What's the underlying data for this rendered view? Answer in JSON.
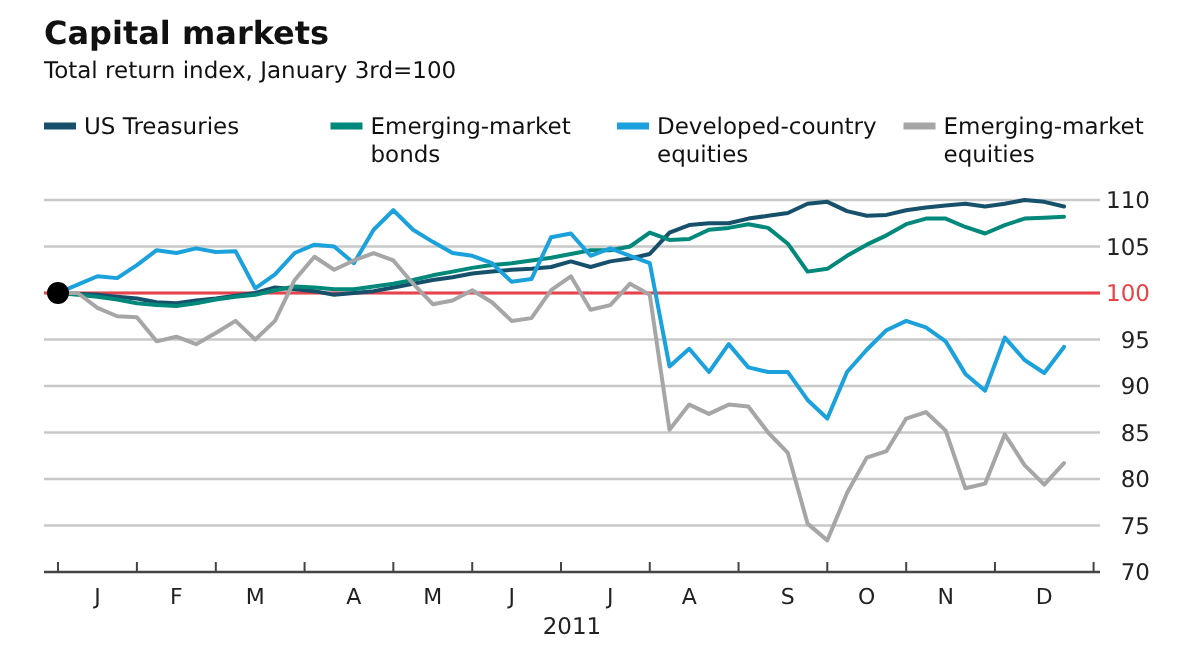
{
  "chart_data": {
    "type": "line",
    "title": "Capital markets",
    "subtitle": "Total return index, January 3rd=100",
    "xlabel": "2011",
    "categories": [
      null,
      null,
      "J",
      null,
      null,
      null,
      "F",
      null,
      null,
      null,
      "M",
      null,
      null,
      null,
      null,
      "A",
      null,
      null,
      null,
      "M",
      null,
      null,
      null,
      "J",
      null,
      null,
      null,
      null,
      "J",
      null,
      null,
      null,
      "A",
      null,
      null,
      null,
      null,
      "S",
      null,
      null,
      null,
      "O",
      null,
      null,
      null,
      "N",
      null,
      null,
      null,
      null,
      "D",
      null
    ],
    "ylim": [
      70,
      110
    ],
    "yticks": [
      70,
      75,
      80,
      85,
      90,
      95,
      100,
      105,
      110
    ],
    "grid": "y",
    "legend": "top",
    "ref_lines": [
      {
        "axis": "y",
        "value": 100,
        "color": "#e8424a"
      }
    ],
    "series": [
      {
        "name": "US Treasuries",
        "color": "#17506b",
        "values": [
          100,
          99.9,
          99.8,
          99.6,
          99.4,
          99,
          98.9,
          99.2,
          99.4,
          99.7,
          100,
          100.6,
          100.4,
          100.2,
          99.8,
          100,
          100.2,
          100.6,
          101,
          101.4,
          101.7,
          102.1,
          102.3,
          102.5,
          102.6,
          102.8,
          103.4,
          102.8,
          103.4,
          103.7,
          104.2,
          106.5,
          107.3,
          107.5,
          107.5,
          108,
          108.3,
          108.6,
          109.6,
          109.8,
          108.8,
          108.3,
          108.4,
          108.9,
          109.2,
          109.4,
          109.6,
          109.3,
          109.6,
          110,
          109.8,
          109.3
        ]
      },
      {
        "name": "Emerging-market bonds",
        "color": "#00897b",
        "values": [
          100,
          99.8,
          99.6,
          99.3,
          98.9,
          98.7,
          98.6,
          98.9,
          99.3,
          99.6,
          99.8,
          100.3,
          100.7,
          100.6,
          100.4,
          100.4,
          100.7,
          101,
          101.4,
          101.9,
          102.3,
          102.7,
          103,
          103.2,
          103.5,
          103.8,
          104.2,
          104.6,
          104.6,
          105,
          106.5,
          105.7,
          105.8,
          106.8,
          107,
          107.4,
          107,
          105.3,
          102.3,
          102.6,
          104,
          105.2,
          106.2,
          107.4,
          108,
          108,
          107.1,
          106.4,
          107.3,
          108,
          108.1,
          108.2
        ]
      },
      {
        "name": "Developed-country equities",
        "color": "#1ba1dc",
        "values": [
          100,
          100.9,
          101.8,
          101.6,
          103,
          104.6,
          104.3,
          104.8,
          104.4,
          104.5,
          100.5,
          102,
          104.3,
          105.2,
          105,
          103.2,
          106.8,
          108.9,
          106.8,
          105.5,
          104.3,
          104,
          103.2,
          101.2,
          101.5,
          106,
          106.4,
          104,
          104.8,
          104,
          103.2,
          92.1,
          94,
          91.5,
          94.5,
          92,
          91.5,
          91.5,
          88.5,
          86.5,
          91.5,
          93.9,
          96,
          97,
          96.3,
          94.8,
          91.3,
          89.5,
          95.2,
          92.8,
          91.4,
          94.2
        ]
      },
      {
        "name": "Emerging-market equities",
        "color": "#a6a6a6",
        "values": [
          100,
          100,
          98.4,
          97.5,
          97.4,
          94.8,
          95.3,
          94.5,
          95.7,
          97,
          95,
          97,
          101.4,
          103.9,
          102.5,
          103.5,
          104.3,
          103.5,
          101,
          98.8,
          99.2,
          100.3,
          99,
          97,
          97.3,
          100.3,
          101.8,
          98.2,
          98.7,
          101,
          99.8,
          85.3,
          88,
          87,
          88,
          87.8,
          85,
          82.8,
          75.2,
          73.4,
          78.5,
          82.3,
          83,
          86.5,
          87.2,
          85.2,
          79,
          79.5,
          84.8,
          81.5,
          79.4,
          81.7
        ]
      }
    ]
  }
}
